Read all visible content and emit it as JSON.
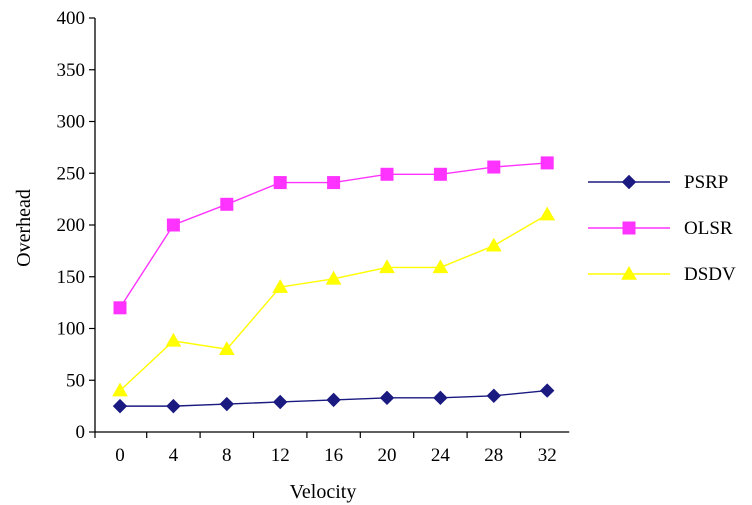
{
  "chart_data": {
    "type": "line",
    "title": "",
    "xlabel": "Velocity",
    "ylabel": "Overhead",
    "x_ticks": [
      0,
      4,
      8,
      12,
      16,
      20,
      24,
      28,
      32
    ],
    "y_ticks": [
      0,
      50,
      100,
      150,
      200,
      250,
      300,
      350,
      400
    ],
    "ylim": [
      0,
      400
    ],
    "grid": false,
    "legend_position": "right",
    "series": [
      {
        "name": "PSRP",
        "color": "#1a1a80",
        "marker": "diamond",
        "x": [
          0,
          4,
          8,
          12,
          16,
          20,
          24,
          28,
          32
        ],
        "y": [
          25,
          25,
          27,
          29,
          31,
          33,
          33,
          35,
          40
        ]
      },
      {
        "name": "OLSR",
        "color": "#ff33ff",
        "marker": "square",
        "x": [
          0,
          4,
          8,
          12,
          16,
          20,
          24,
          28,
          32
        ],
        "y": [
          120,
          200,
          220,
          241,
          241,
          249,
          249,
          256,
          260
        ]
      },
      {
        "name": "DSDV",
        "color": "#ffff00",
        "marker": "triangle",
        "x": [
          0,
          4,
          8,
          12,
          16,
          20,
          24,
          28,
          32
        ],
        "y": [
          40,
          88,
          80,
          140,
          148,
          159,
          159,
          180,
          210
        ]
      }
    ]
  }
}
